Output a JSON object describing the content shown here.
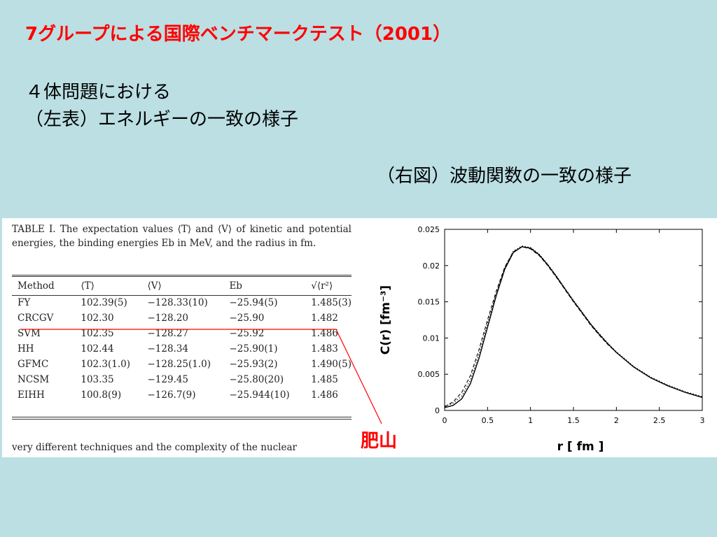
{
  "slide": {
    "title": "7グループによる国際ベンチマークテスト（2001）",
    "subtitle_line1": "４体問題における",
    "subtitle_line2": "（左表）エネルギーの一致の様子",
    "right_note": "（右図）波動関数の一致の様子",
    "annotation": "肥山"
  },
  "table": {
    "caption": "TABLE I. The expectation values ⟨T⟩ and ⟨V⟩ of kinetic and potential energies, the binding energies Eb in MeV, and the radius in fm.",
    "headers": [
      "Method",
      "⟨T⟩",
      "⟨V⟩",
      "Eb",
      "√⟨r²⟩"
    ],
    "rows": [
      [
        "FY",
        "102.39(5)",
        "−128.33(10)",
        "−25.94(5)",
        "1.485(3)"
      ],
      [
        "CRCGV",
        "102.30",
        "−128.20",
        "−25.90",
        "1.482"
      ],
      [
        "SVM",
        "102.35",
        "−128.27",
        "−25.92",
        "1.486"
      ],
      [
        "HH",
        "102.44",
        "−128.34",
        "−25.90(1)",
        "1.483"
      ],
      [
        "GFMC",
        "102.3(1.0)",
        "−128.25(1.0)",
        "−25.93(2)",
        "1.490(5)"
      ],
      [
        "NCSM",
        "103.35",
        "−129.45",
        "−25.80(20)",
        "1.485"
      ],
      [
        "EIHH",
        "100.8(9)",
        "−126.7(9)",
        "−25.944(10)",
        "1.486"
      ]
    ],
    "bottom_text": "very different techniques and the complexity of the nuclear"
  },
  "chart_data": {
    "type": "line",
    "title": "",
    "xlabel": "r    [ fm ]",
    "ylabel": "C(r)  [fm⁻³]",
    "xlim": [
      0,
      3
    ],
    "ylim": [
      0,
      0.025
    ],
    "xticks": [
      "0",
      "0.5",
      "1",
      "1.5",
      "2",
      "2.5",
      "3"
    ],
    "yticks": [
      "0",
      "0.005",
      "0.01",
      "0.015",
      "0.02",
      "0.025"
    ],
    "series": [
      {
        "style": "solid",
        "x": [
          0,
          0.1,
          0.2,
          0.3,
          0.4,
          0.5,
          0.6,
          0.7,
          0.8,
          0.9,
          1.0,
          1.1,
          1.2,
          1.3,
          1.4,
          1.5,
          1.6,
          1.7,
          1.8,
          1.9,
          2.0,
          2.2,
          2.4,
          2.6,
          2.8,
          3.0
        ],
        "y": [
          0.0004,
          0.0007,
          0.0016,
          0.0037,
          0.0072,
          0.0115,
          0.0158,
          0.0195,
          0.0218,
          0.0226,
          0.0224,
          0.0215,
          0.0201,
          0.0185,
          0.0168,
          0.0151,
          0.0135,
          0.0119,
          0.0105,
          0.0092,
          0.008,
          0.006,
          0.0045,
          0.0034,
          0.0025,
          0.0018
        ]
      },
      {
        "style": "dashed",
        "x": [
          0,
          0.1,
          0.2,
          0.3,
          0.4,
          0.5,
          0.6,
          0.7,
          0.8,
          0.9,
          1.0,
          1.1,
          1.2,
          1.3,
          1.4,
          1.5,
          1.6,
          1.7,
          1.8,
          1.9,
          2.0,
          2.2,
          2.4,
          2.6,
          2.8,
          3.0
        ],
        "y": [
          0.0005,
          0.0012,
          0.0025,
          0.0048,
          0.0084,
          0.0125,
          0.0164,
          0.0198,
          0.0219,
          0.0226,
          0.0223,
          0.0214,
          0.02,
          0.0184,
          0.0167,
          0.015,
          0.0134,
          0.0118,
          0.0104,
          0.0091,
          0.008,
          0.006,
          0.0045,
          0.0034,
          0.0025,
          0.0018
        ]
      },
      {
        "style": "dotted",
        "x": [
          0,
          0.1,
          0.2,
          0.3,
          0.4,
          0.5,
          0.6,
          0.7,
          0.8,
          0.9,
          1.0,
          1.1,
          1.2,
          1.3,
          1.4,
          1.5,
          1.6,
          1.7,
          1.8,
          1.9,
          2.0,
          2.2,
          2.4,
          2.6,
          2.8,
          3.0
        ],
        "y": [
          0.0006,
          0.001,
          0.002,
          0.0042,
          0.0078,
          0.012,
          0.0161,
          0.0197,
          0.022,
          0.0227,
          0.0225,
          0.0216,
          0.0202,
          0.0186,
          0.0169,
          0.0152,
          0.0136,
          0.012,
          0.0106,
          0.0093,
          0.0081,
          0.0061,
          0.0046,
          0.0035,
          0.0026,
          0.0019
        ]
      }
    ],
    "legend": "none",
    "grid": false
  },
  "colors": {
    "background": "#bbdfe3",
    "title": "#ff0000",
    "annotation": "#ff0000",
    "pointer_line": "#ff0000"
  }
}
